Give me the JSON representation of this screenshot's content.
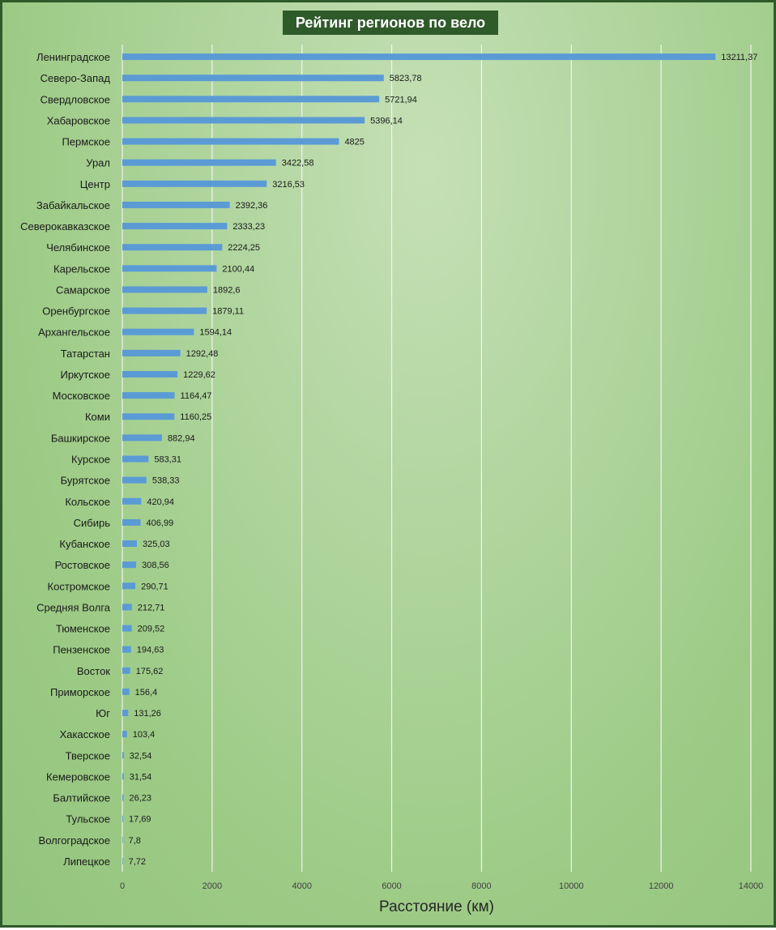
{
  "chart_data": {
    "type": "bar",
    "orientation": "horizontal",
    "title": "Рейтинг регионов по вело",
    "xlabel": "Расстояние (км)",
    "ylabel": "",
    "xlim": [
      0,
      14000
    ],
    "xticks": [
      0,
      2000,
      4000,
      6000,
      8000,
      10000,
      12000,
      14000
    ],
    "grid": true,
    "bar_color": "#5b9bd5",
    "categories": [
      "Ленинградское",
      "Северо-Запад",
      "Свердловское",
      "Хабаровское",
      "Пермское",
      "Урал",
      "Центр",
      "Забайкальское",
      "Северокавказское",
      "Челябинское",
      "Карельское",
      "Самарское",
      "Оренбургское",
      "Архангельское",
      "Татарстан",
      "Иркутское",
      "Московское",
      "Коми",
      "Башкирское",
      "Курское",
      "Бурятское",
      "Кольское",
      "Сибирь",
      "Кубанское",
      "Ростовское",
      "Костромское",
      "Средняя Волга",
      "Тюменское",
      "Пензенское",
      "Восток",
      "Приморское",
      "Юг",
      "Хакасское",
      "Тверское",
      "Кемеровское",
      "Балтийское",
      "Тульское",
      "Волгоградское",
      "Липецкое"
    ],
    "values": [
      13211.37,
      5823.78,
      5721.94,
      5396.14,
      4825,
      3422.58,
      3216.53,
      2392.36,
      2333.23,
      2224.25,
      2100.44,
      1892.6,
      1879.11,
      1594.14,
      1292.48,
      1229.62,
      1164.47,
      1160.25,
      882.94,
      583.31,
      538.33,
      420.94,
      406.99,
      325.03,
      308.56,
      290.71,
      212.71,
      209.52,
      194.63,
      175.62,
      156.4,
      131.26,
      103.4,
      32.54,
      31.54,
      26.23,
      17.69,
      7.8,
      7.72
    ],
    "value_labels": [
      "13211,37",
      "5823,78",
      "5721,94",
      "5396,14",
      "4825",
      "3422,58",
      "3216,53",
      "2392,36",
      "2333,23",
      "2224,25",
      "2100,44",
      "1892,6",
      "1879,11",
      "1594,14",
      "1292,48",
      "1229,62",
      "1164,47",
      "1160,25",
      "882,94",
      "583,31",
      "538,33",
      "420,94",
      "406,99",
      "325,03",
      "308,56",
      "290,71",
      "212,71",
      "209,52",
      "194,63",
      "175,62",
      "156,4",
      "131,26",
      "103,4",
      "32,54",
      "31,54",
      "26,23",
      "17,69",
      "7,8",
      "7,72"
    ]
  }
}
